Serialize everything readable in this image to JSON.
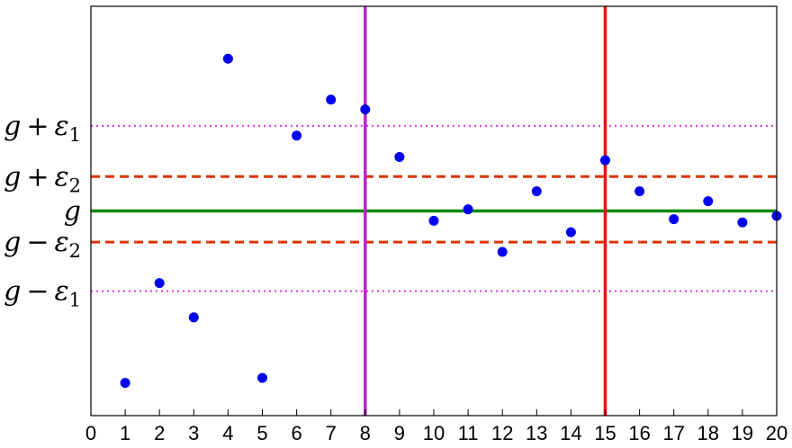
{
  "chart_data": {
    "type": "scatter",
    "title": "",
    "xlabel": "",
    "ylabel": "",
    "xlim": [
      0,
      20
    ],
    "ylim": [
      -1.25,
      1.25
    ],
    "x_ticks": [
      "0",
      "1",
      "2",
      "3",
      "4",
      "5",
      "6",
      "7",
      "8",
      "9",
      "10",
      "11",
      "12",
      "13",
      "14",
      "15",
      "16",
      "17",
      "18",
      "19",
      "20"
    ],
    "grid": false,
    "legend": "none",
    "series": [
      {
        "color": "#0000ee",
        "x": [
          1,
          2,
          3,
          4,
          5,
          6,
          7,
          8,
          9,
          10,
          11,
          12,
          13,
          14,
          15,
          16,
          17,
          18,
          19,
          20
        ],
        "y": [
          -1.05,
          -0.44,
          -0.65,
          0.93,
          -1.02,
          0.46,
          0.68,
          0.62,
          0.33,
          -0.06,
          0.01,
          -0.25,
          0.12,
          -0.13,
          0.31,
          0.12,
          -0.05,
          0.06,
          -0.07,
          -0.03
        ]
      }
    ],
    "reference_lines": [
      {
        "label": "g + ε1",
        "base": "g",
        "sign": "+",
        "sub": "1",
        "y": 0.52,
        "color": "#dd33dd",
        "style": "dotted"
      },
      {
        "label": "g + ε2",
        "base": "g",
        "sign": "+",
        "sub": "2",
        "y": 0.21,
        "color": "#dd3300",
        "style": "dashed"
      },
      {
        "label": "g",
        "base": "g",
        "sign": "",
        "sub": "",
        "y": 0.0,
        "color": "#008800",
        "style": "solid"
      },
      {
        "label": "g − ε2",
        "base": "g",
        "sign": "−",
        "sub": "2",
        "y": -0.19,
        "color": "#dd3300",
        "style": "dashed"
      },
      {
        "label": "g − ε1",
        "base": "g",
        "sign": "−",
        "sub": "1",
        "y": -0.49,
        "color": "#dd33dd",
        "style": "dotted"
      }
    ],
    "vertical_lines": [
      {
        "x": 8,
        "color": "#bb22cc"
      },
      {
        "x": 15,
        "color": "#ee1111"
      }
    ]
  }
}
